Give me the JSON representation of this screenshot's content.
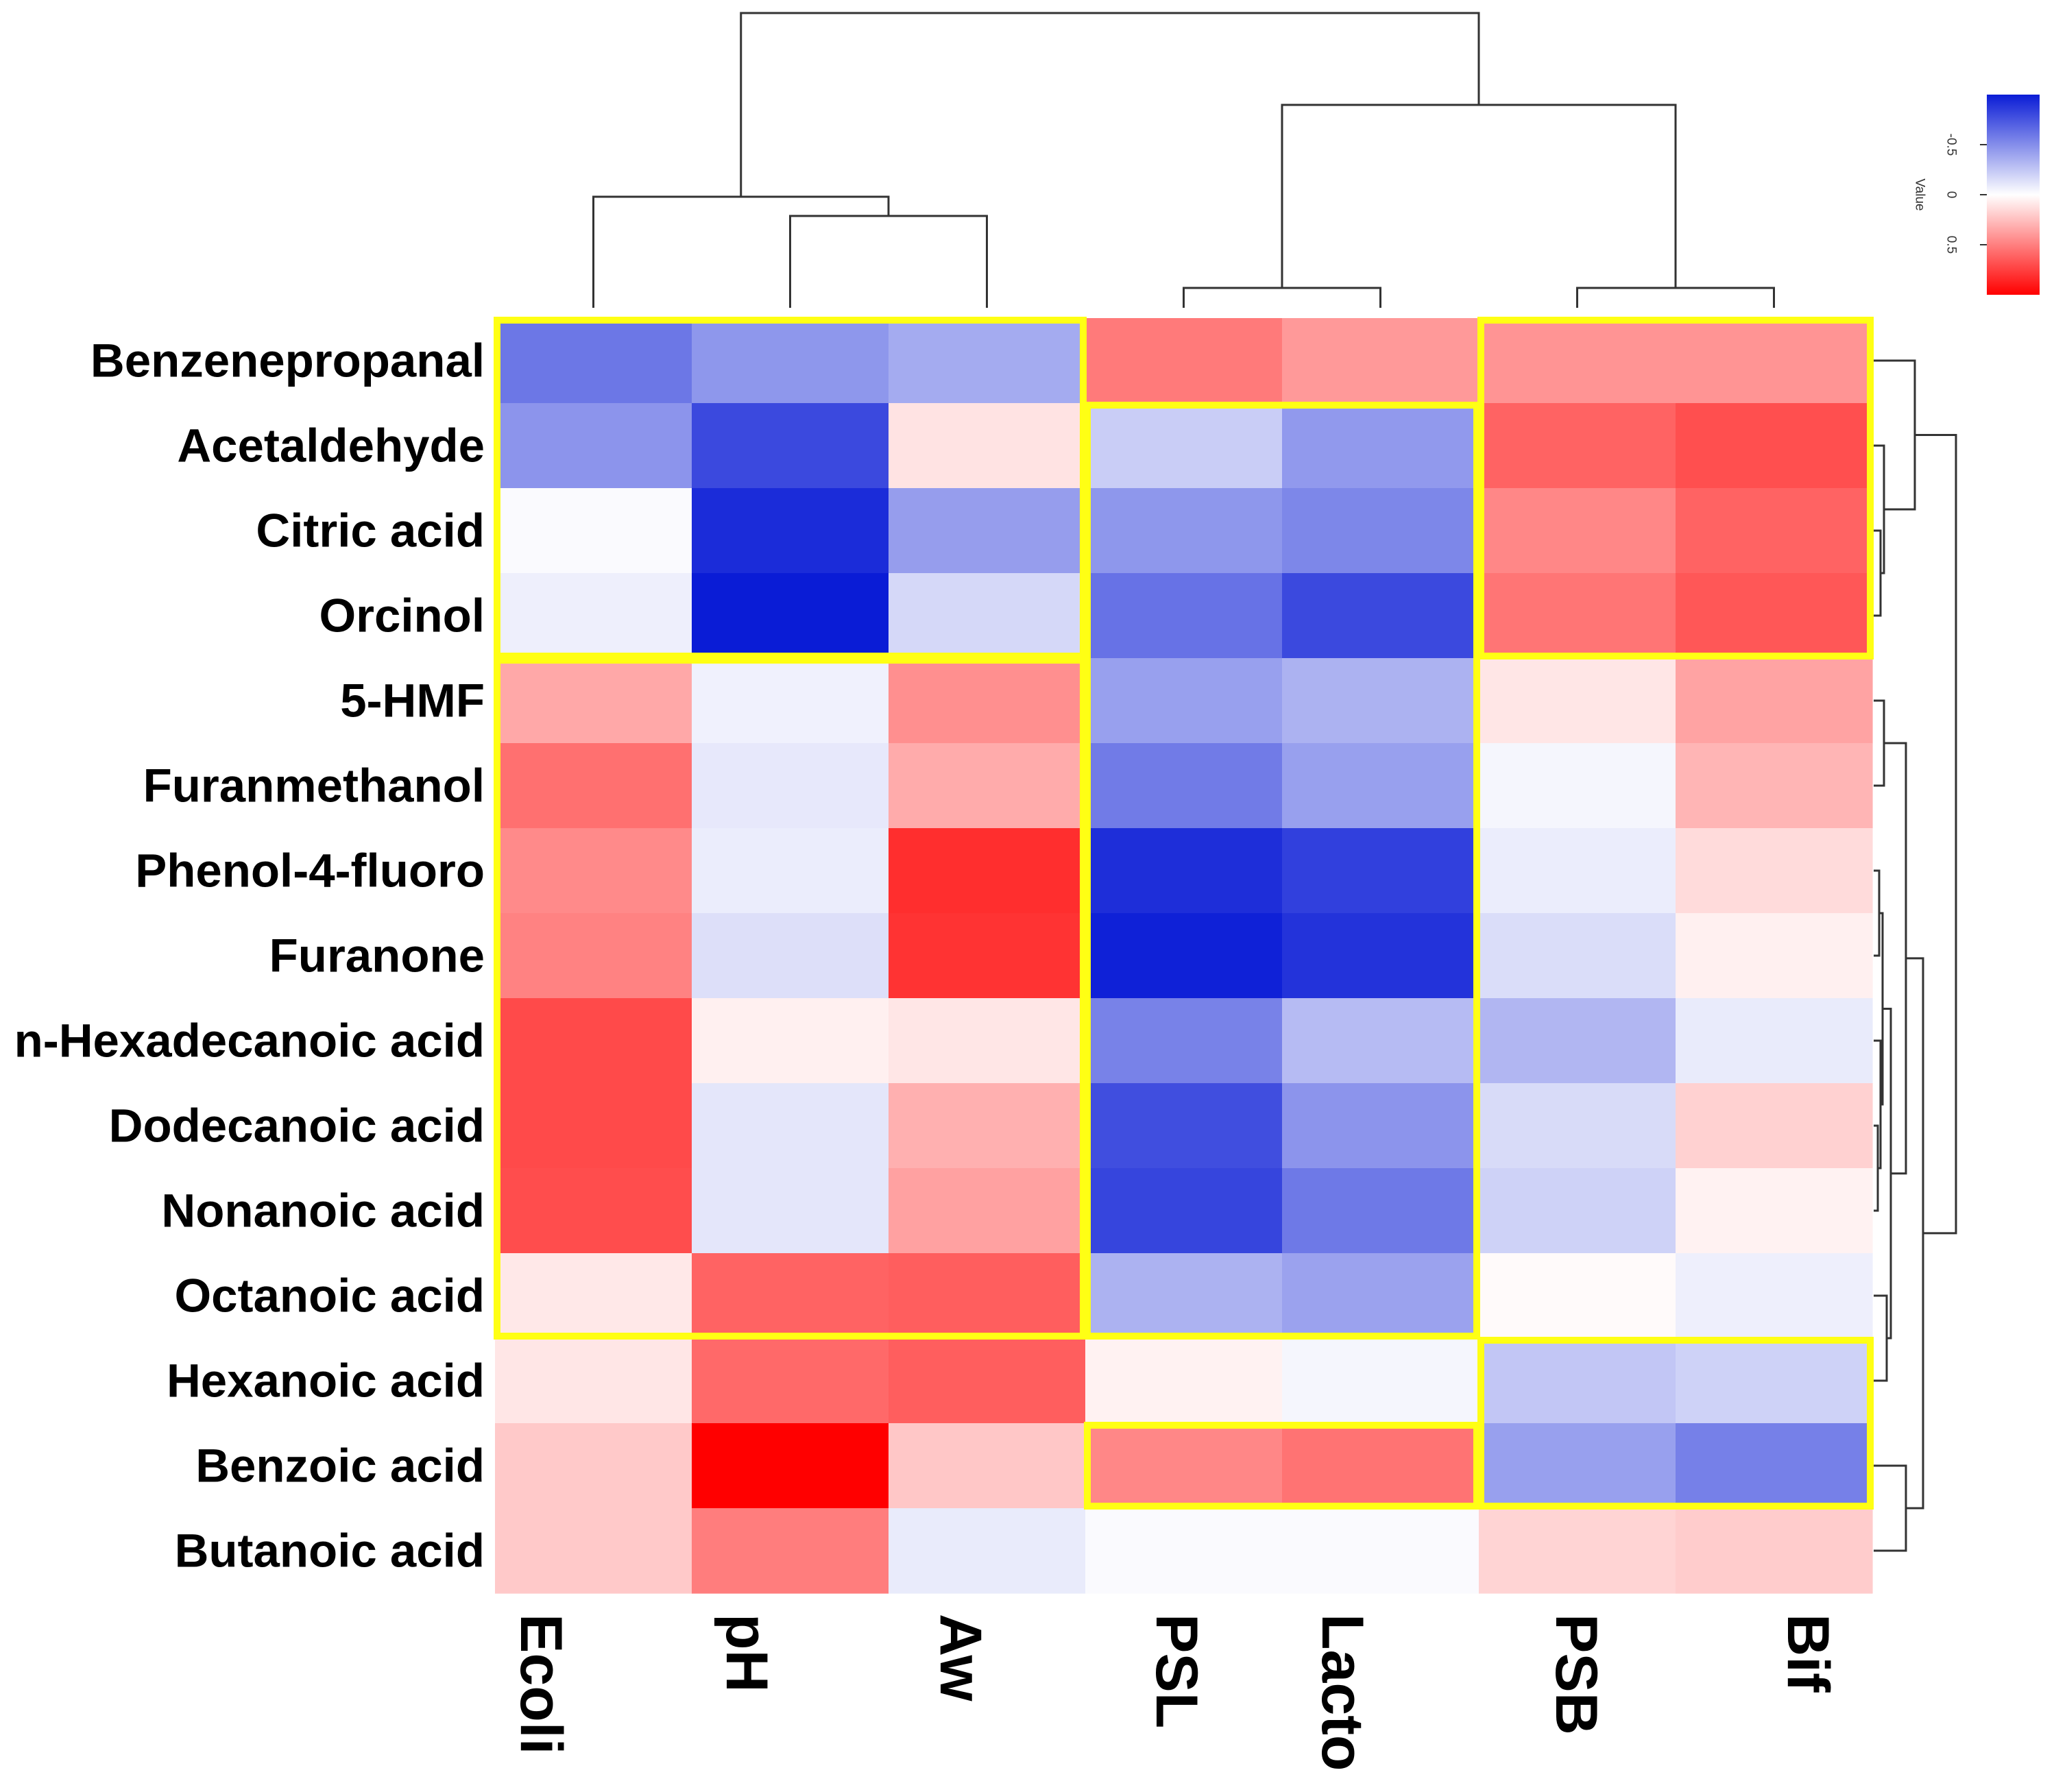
{
  "colors": {
    "negative": "#0a1cd6",
    "zero": "#ffffff",
    "positive": "#ff0000",
    "highlight": "#ffff14"
  },
  "chart_data": {
    "type": "heatmap",
    "rows": [
      "Benzenepropanal",
      "Acetaldehyde",
      "Citric acid",
      "Orcinol",
      "5-HMF",
      "Furanmethanol",
      "Phenol-4-fluoro",
      "Furanone",
      "n-Hexadecanoic acid",
      "Dodecanoic acid",
      "Nonanoic acid",
      "Octanoic acid",
      "Hexanoic acid",
      "Benzoic acid",
      "Butanoic acid"
    ],
    "columns": [
      "Ecoli",
      "pH",
      "Aw",
      "PSL",
      "Lacto",
      "PSB",
      "Bif"
    ],
    "values": [
      [
        -0.6,
        -0.46,
        -0.37,
        0.52,
        0.4,
        0.42,
        0.42
      ],
      [
        -0.47,
        -0.8,
        0.11,
        -0.22,
        -0.45,
        0.61,
        0.69
      ],
      [
        -0.02,
        -0.93,
        -0.43,
        -0.46,
        -0.53,
        0.47,
        0.61
      ],
      [
        -0.07,
        -1.0,
        -0.17,
        -0.62,
        -0.8,
        0.54,
        0.66
      ],
      [
        0.34,
        -0.06,
        0.44,
        -0.42,
        -0.34,
        0.1,
        0.36
      ],
      [
        0.56,
        -0.1,
        0.33,
        -0.58,
        -0.42,
        -0.04,
        0.29
      ],
      [
        0.46,
        -0.08,
        0.82,
        -0.92,
        -0.84,
        -0.08,
        0.14
      ],
      [
        0.49,
        -0.14,
        0.8,
        -0.98,
        -0.9,
        -0.15,
        0.06
      ],
      [
        0.71,
        0.06,
        0.1,
        -0.55,
        -0.3,
        -0.32,
        -0.09
      ],
      [
        0.71,
        -0.11,
        0.31,
        -0.78,
        -0.47,
        -0.16,
        0.18
      ],
      [
        0.7,
        -0.11,
        0.37,
        -0.82,
        -0.59,
        -0.2,
        0.05
      ],
      [
        0.09,
        0.61,
        0.63,
        -0.34,
        -0.41,
        0.02,
        -0.07
      ],
      [
        0.1,
        0.59,
        0.63,
        0.05,
        -0.04,
        -0.25,
        -0.2
      ],
      [
        0.21,
        1.0,
        0.22,
        0.47,
        0.55,
        -0.42,
        -0.56
      ],
      [
        0.21,
        0.51,
        -0.09,
        -0.02,
        -0.02,
        0.17,
        0.2
      ]
    ],
    "colorbar": {
      "title": "Value",
      "range": [
        -1,
        1
      ],
      "tick_values": [
        -0.5,
        0,
        0.5
      ],
      "tick_labels": [
        "-0.5",
        "0",
        "0.5"
      ]
    },
    "highlight_boxes": [
      {
        "rows": [
          0,
          3
        ],
        "columns": [
          0,
          2
        ]
      },
      {
        "rows": [
          4,
          11
        ],
        "columns": [
          0,
          2
        ]
      },
      {
        "rows": [
          1,
          11
        ],
        "columns": [
          3,
          4
        ]
      },
      {
        "rows": [
          0,
          3
        ],
        "columns": [
          5,
          6
        ]
      },
      {
        "rows": [
          12,
          13
        ],
        "columns": [
          5,
          6
        ]
      },
      {
        "rows": [
          13,
          13
        ],
        "columns": [
          3,
          4
        ]
      }
    ]
  }
}
